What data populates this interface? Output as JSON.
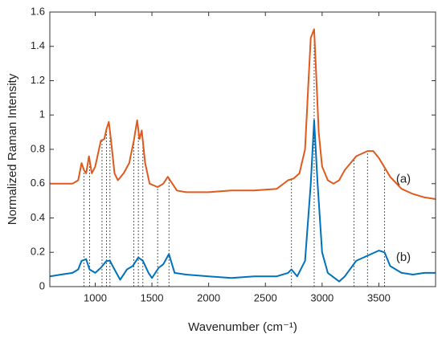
{
  "chart_data": {
    "type": "line",
    "xlabel": "Wavenumber (cm⁻¹)",
    "ylabel": "Normalized Raman Intensity",
    "xlim": [
      600,
      4000
    ],
    "ylim": [
      0,
      1.6
    ],
    "xticks": [
      1000,
      1500,
      2000,
      2500,
      3000,
      3500
    ],
    "yticks": [
      0,
      0.2,
      0.4,
      0.6,
      0.8,
      1,
      1.2,
      1.4,
      1.6
    ],
    "grid": false,
    "peak_lines": [
      900,
      950,
      1060,
      1100,
      1130,
      1340,
      1380,
      1420,
      1550,
      1650,
      2730,
      2930,
      3280,
      3400,
      3550
    ],
    "series": [
      {
        "name": "(a)",
        "color": "#e05a1e",
        "x": [
          600,
          700,
          800,
          850,
          880,
          900,
          920,
          945,
          970,
          1000,
          1050,
          1080,
          1100,
          1120,
          1140,
          1170,
          1200,
          1250,
          1300,
          1340,
          1370,
          1390,
          1410,
          1440,
          1480,
          1550,
          1600,
          1640,
          1680,
          1720,
          1800,
          2000,
          2200,
          2400,
          2600,
          2700,
          2750,
          2800,
          2850,
          2880,
          2900,
          2930,
          2950,
          2970,
          3000,
          3050,
          3100,
          3150,
          3200,
          3300,
          3400,
          3450,
          3500,
          3600,
          3700,
          3800,
          3900,
          4000
        ],
        "values": [
          0.6,
          0.6,
          0.6,
          0.62,
          0.72,
          0.68,
          0.66,
          0.76,
          0.66,
          0.7,
          0.85,
          0.86,
          0.92,
          0.96,
          0.85,
          0.66,
          0.62,
          0.66,
          0.72,
          0.85,
          0.97,
          0.86,
          0.91,
          0.72,
          0.6,
          0.58,
          0.6,
          0.64,
          0.6,
          0.56,
          0.55,
          0.55,
          0.56,
          0.56,
          0.57,
          0.62,
          0.63,
          0.66,
          0.8,
          1.2,
          1.45,
          1.5,
          1.2,
          0.9,
          0.7,
          0.62,
          0.6,
          0.62,
          0.68,
          0.76,
          0.79,
          0.79,
          0.75,
          0.64,
          0.57,
          0.54,
          0.52,
          0.51
        ]
      },
      {
        "name": "(b)",
        "color": "#0072bd",
        "x": [
          600,
          700,
          800,
          850,
          880,
          920,
          950,
          1000,
          1050,
          1100,
          1130,
          1170,
          1220,
          1280,
          1330,
          1380,
          1420,
          1470,
          1500,
          1560,
          1600,
          1650,
          1700,
          1800,
          2000,
          2200,
          2400,
          2600,
          2700,
          2730,
          2780,
          2850,
          2900,
          2930,
          2960,
          3000,
          3050,
          3150,
          3200,
          3300,
          3400,
          3500,
          3550,
          3600,
          3700,
          3800,
          3900,
          4000
        ],
        "values": [
          0.06,
          0.07,
          0.08,
          0.1,
          0.15,
          0.16,
          0.1,
          0.08,
          0.11,
          0.15,
          0.15,
          0.1,
          0.04,
          0.1,
          0.12,
          0.17,
          0.15,
          0.08,
          0.05,
          0.11,
          0.13,
          0.19,
          0.08,
          0.07,
          0.06,
          0.05,
          0.06,
          0.06,
          0.08,
          0.1,
          0.06,
          0.15,
          0.6,
          0.97,
          0.6,
          0.2,
          0.08,
          0.03,
          0.06,
          0.15,
          0.18,
          0.21,
          0.2,
          0.12,
          0.08,
          0.07,
          0.08,
          0.08
        ]
      }
    ]
  }
}
